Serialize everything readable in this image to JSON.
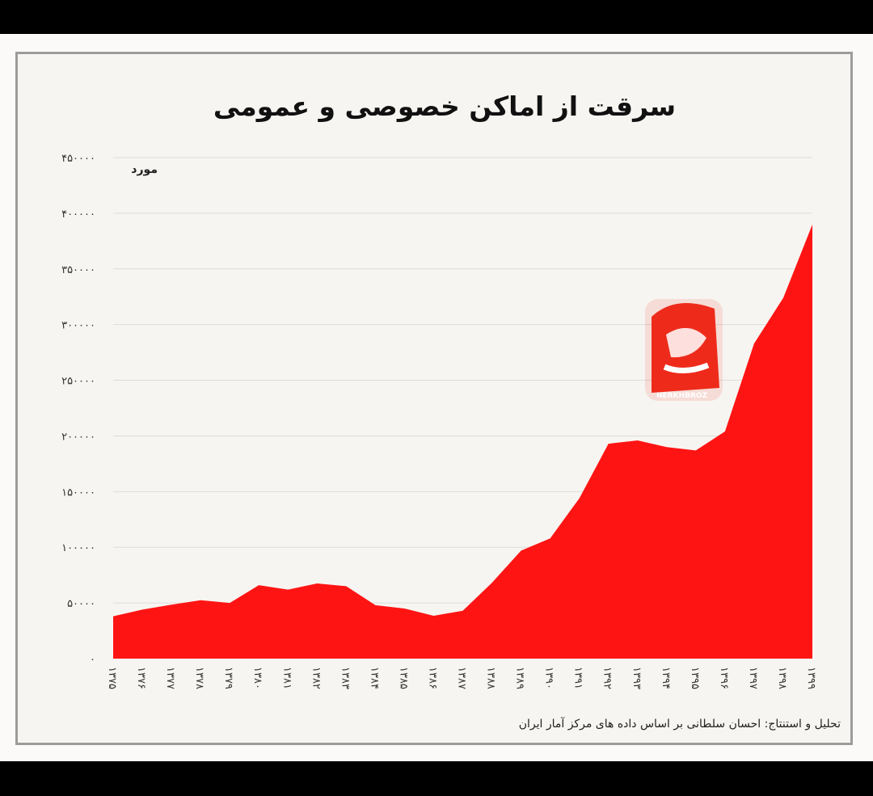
{
  "chart_data": {
    "type": "area",
    "title": "سرقت از اماکن خصوصی و عمومی",
    "ylabel": "مورد",
    "ylim": [
      0,
      450000
    ],
    "y_ticks": [
      0,
      50000,
      100000,
      150000,
      200000,
      250000,
      300000,
      350000,
      400000,
      450000
    ],
    "y_tick_labels": [
      "۰",
      "۵۰۰۰۰",
      "۱۰۰۰۰۰",
      "۱۵۰۰۰۰",
      "۲۰۰۰۰۰",
      "۲۵۰۰۰۰",
      "۳۰۰۰۰۰",
      "۳۵۰۰۰۰",
      "۴۰۰۰۰۰",
      "۴۵۰۰۰۰"
    ],
    "grid": true,
    "categories": [
      "۱۳۷۵",
      "۱۳۷۶",
      "۱۳۷۷",
      "۱۳۷۸",
      "۱۳۷۹",
      "۱۳۸۰",
      "۱۳۸۱",
      "۱۳۸۲",
      "۱۳۸۳",
      "۱۳۸۴",
      "۱۳۸۵",
      "۱۳۸۶",
      "۱۳۸۷",
      "۱۳۸۸",
      "۱۳۸۹",
      "۱۳۹۰",
      "۱۳۹۱",
      "۱۳۹۲",
      "۱۳۹۳",
      "۱۳۹۴",
      "۱۳۹۵",
      "۱۳۹۶",
      "۱۳۹۷",
      "۱۳۹۸",
      "۱۳۹۹"
    ],
    "series": [
      {
        "values": [
          38000,
          44000,
          48500,
          52500,
          50000,
          66000,
          62000,
          67500,
          65000,
          48000,
          45000,
          38500,
          43000,
          68000,
          97000,
          108000,
          144000,
          193000,
          196000,
          190000,
          187000,
          204000,
          283000,
          324000,
          390000
        ],
        "color": "#ff1414"
      }
    ]
  },
  "logo": {
    "text_main": "نرخ روز",
    "text_latin": "NERKHBROZ",
    "color": "#ee2b1b"
  },
  "source": "تحلیل و استنتاج: احسان سلطانی بر اساس داده های مرکز آمار ایران"
}
